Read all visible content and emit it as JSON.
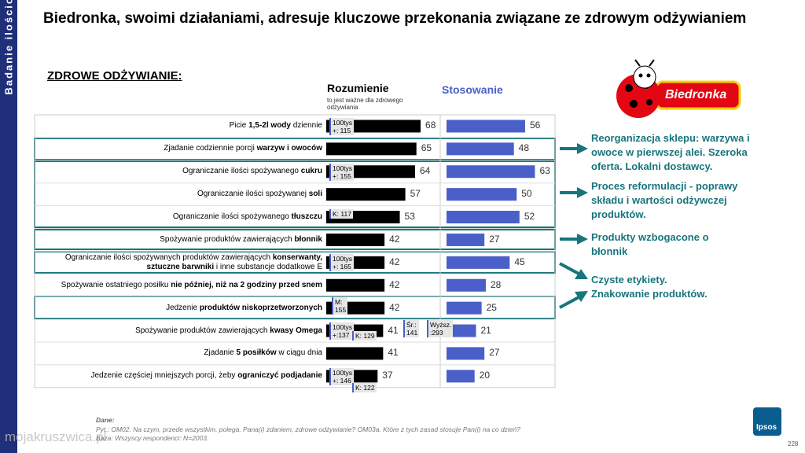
{
  "chart_data": {
    "type": "bar",
    "sidebar": "Badanie ilościowe",
    "title": "Biedronka, swoimi działaniami, adresuje kluczowe przekonania związane ze zdrowym odżywianiem",
    "section": "ZDROWE ODŻYWIANIE:",
    "categories": [
      [
        "Picie ",
        "1,5-2l wody",
        " dziennie"
      ],
      [
        "Zjadanie codziennie porcji ",
        "warzyw i owoców"
      ],
      [
        "Ograniczanie ilości spożywanego ",
        "cukru"
      ],
      [
        "Ograniczanie ilości spożywanej ",
        "soli"
      ],
      [
        "Ograniczanie ilości spożywanego ",
        "tłuszczu"
      ],
      [
        "Spożywanie produktów zawierających ",
        "błonnik"
      ],
      [
        "Ograniczanie ilości spożywanych produktów zawierających ",
        "konserwanty, sztuczne barwniki",
        " i inne substancje dodatkowe E"
      ],
      [
        "Spożywanie ostatniego posiłku ",
        "nie później, niż na 2 godziny przed snem"
      ],
      [
        "Jedzenie ",
        "produktów niskoprzetworzonych"
      ],
      [
        "Spożywanie produktów zawierających ",
        "kwasy Omega"
      ],
      [
        "Zjadanie ",
        "5 posiłków",
        " w ciągu dnia"
      ],
      [
        "Jedzenie częściej mniejszych porcji, żeby ",
        "ograniczyć podjadanie"
      ]
    ],
    "series": [
      {
        "name": "Rozumienie",
        "subtitle": "to jest ważne dla zdrowego odżywiania",
        "color": "#000000",
        "values": [
          68,
          65,
          64,
          57,
          53,
          42,
          42,
          42,
          42,
          41,
          41,
          37
        ]
      },
      {
        "name": "Stosowanie",
        "color": "#4a5fc8",
        "values": [
          56,
          48,
          63,
          50,
          52,
          27,
          45,
          28,
          25,
          21,
          27,
          20
        ]
      }
    ],
    "notes": [
      [
        [
          "100tys",
          "+: 115"
        ]
      ],
      [],
      [
        [
          "100tys",
          "+: 155"
        ]
      ],
      [],
      [
        [
          "K: 117"
        ]
      ],
      [],
      [
        [
          "100tys",
          "+: 165"
        ]
      ],
      [],
      [
        [
          "M:",
          "155"
        ]
      ],
      [
        [
          "100tys",
          "+:137"
        ],
        [
          "K: 129"
        ],
        [
          "Śr.:",
          "141"
        ],
        [
          "Wyższ.",
          ":293"
        ]
      ],
      [],
      [
        [
          "100tys",
          "+: 146"
        ],
        [
          "K: 122"
        ]
      ]
    ],
    "callouts": [
      [
        "Reorganizacja sklepu: warzywa i",
        "owoce w pierwszej alei. Szeroka",
        "oferta. Lokalni dostawcy."
      ],
      [
        "Proces reformulacji - poprawy",
        "składu i wartości odżywczej",
        "produktów."
      ],
      [
        "Produkty wzbogacone o",
        "błonnik"
      ],
      [
        "Czyste etykiety.",
        "Znakowanie produktów."
      ]
    ],
    "logo": "Biedronka",
    "footer": [
      "Dane:",
      "Pyt.: OM02. Na czym, przede wszystkim, polega, Pana(i) zdaniem, zdrowe odżywianie? OM03a. Które z tych zasad stosuje Pan(i) na co dzień?",
      "Baza: Wszyscy respondenci: N=2003."
    ],
    "watermark": "mojakruszwica.pl",
    "brand": "Ipsos",
    "page_number": "228"
  }
}
